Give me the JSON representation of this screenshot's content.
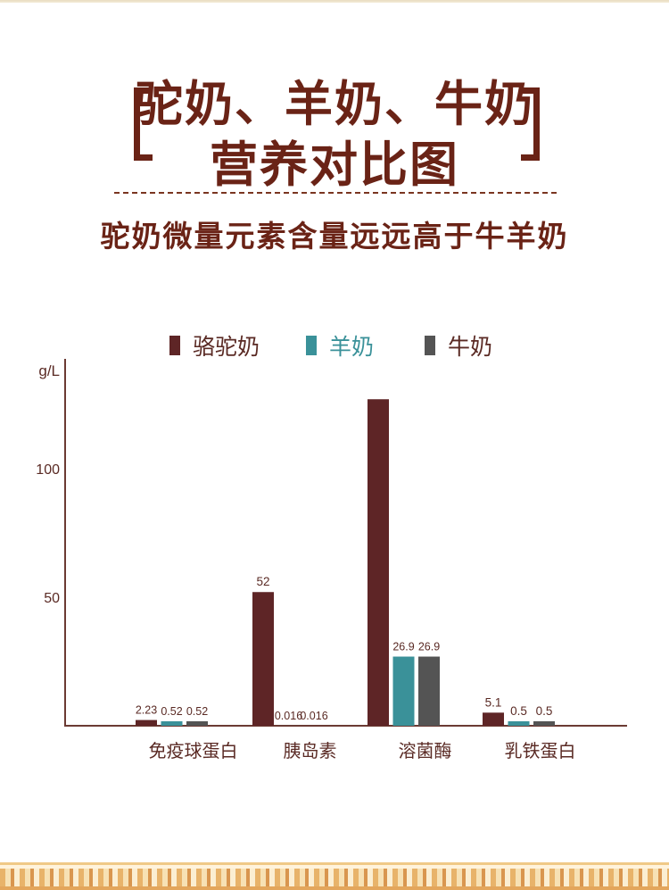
{
  "header": {
    "title_line1": "驼奶、羊奶、牛奶",
    "title_line2": "营养对比图",
    "subtitle": "驼奶微量元素含量远远高于牛羊奶"
  },
  "chart_data": {
    "type": "bar",
    "title": "",
    "ylabel": "g/L",
    "xlabel": "",
    "ylim": [
      0,
      140
    ],
    "yticks": [
      50,
      100
    ],
    "grid": false,
    "legend_placement": "top",
    "categories": [
      "免疫球蛋白",
      "胰岛素",
      "溶菌酶",
      "乳铁蛋白"
    ],
    "series": [
      {
        "name": "骆驼奶",
        "color": "#5e2526",
        "values": [
          2.23,
          52,
          127,
          5.1
        ],
        "labels": [
          "2.23",
          "52",
          "",
          "5.1"
        ]
      },
      {
        "name": "羊奶",
        "color": "#3a9199",
        "values": [
          0.52,
          0.016,
          26.9,
          0.5
        ],
        "labels": [
          "0.52",
          "0.016",
          "26.9",
          "0.5"
        ]
      },
      {
        "name": "牛奶",
        "color": "#545454",
        "values": [
          0.52,
          0.016,
          26.9,
          0.5
        ],
        "labels": [
          "0.52",
          "0.016",
          "26.9",
          "0.5"
        ]
      }
    ],
    "axis_color": "#6b3a33",
    "text_color": "#5a2a24"
  }
}
